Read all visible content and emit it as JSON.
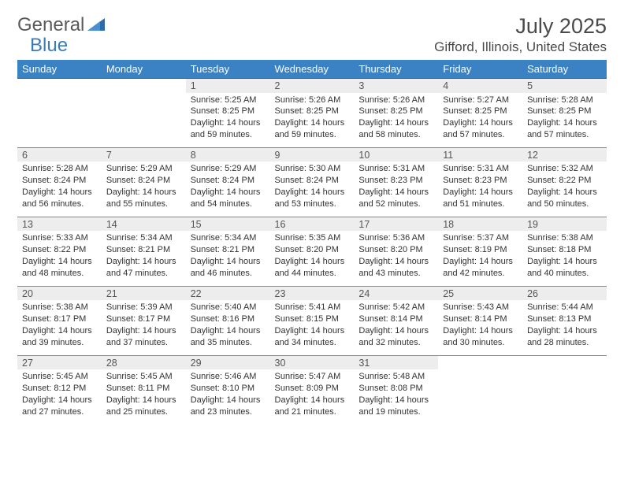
{
  "brand": {
    "prefix": "General",
    "suffix": "Blue"
  },
  "title": "July 2025",
  "location": "Gifford, Illinois, United States",
  "colors": {
    "header_bg": "#3b82c4",
    "header_text": "#ffffff",
    "daynum_bg": "#ededed",
    "border": "#888888",
    "brand_blue": "#3b7bb8",
    "text_main": "#333333",
    "text_muted": "#555555",
    "page_bg": "#ffffff"
  },
  "daynames": [
    "Sunday",
    "Monday",
    "Tuesday",
    "Wednesday",
    "Thursday",
    "Friday",
    "Saturday"
  ],
  "weeks": [
    {
      "nums": [
        "",
        "",
        "1",
        "2",
        "3",
        "4",
        "5"
      ],
      "cells": [
        null,
        null,
        {
          "sr": "5:25 AM",
          "ss": "8:25 PM",
          "dl": "14 hours and 59 minutes."
        },
        {
          "sr": "5:26 AM",
          "ss": "8:25 PM",
          "dl": "14 hours and 59 minutes."
        },
        {
          "sr": "5:26 AM",
          "ss": "8:25 PM",
          "dl": "14 hours and 58 minutes."
        },
        {
          "sr": "5:27 AM",
          "ss": "8:25 PM",
          "dl": "14 hours and 57 minutes."
        },
        {
          "sr": "5:28 AM",
          "ss": "8:25 PM",
          "dl": "14 hours and 57 minutes."
        }
      ]
    },
    {
      "nums": [
        "6",
        "7",
        "8",
        "9",
        "10",
        "11",
        "12"
      ],
      "cells": [
        {
          "sr": "5:28 AM",
          "ss": "8:24 PM",
          "dl": "14 hours and 56 minutes."
        },
        {
          "sr": "5:29 AM",
          "ss": "8:24 PM",
          "dl": "14 hours and 55 minutes."
        },
        {
          "sr": "5:29 AM",
          "ss": "8:24 PM",
          "dl": "14 hours and 54 minutes."
        },
        {
          "sr": "5:30 AM",
          "ss": "8:24 PM",
          "dl": "14 hours and 53 minutes."
        },
        {
          "sr": "5:31 AM",
          "ss": "8:23 PM",
          "dl": "14 hours and 52 minutes."
        },
        {
          "sr": "5:31 AM",
          "ss": "8:23 PM",
          "dl": "14 hours and 51 minutes."
        },
        {
          "sr": "5:32 AM",
          "ss": "8:22 PM",
          "dl": "14 hours and 50 minutes."
        }
      ]
    },
    {
      "nums": [
        "13",
        "14",
        "15",
        "16",
        "17",
        "18",
        "19"
      ],
      "cells": [
        {
          "sr": "5:33 AM",
          "ss": "8:22 PM",
          "dl": "14 hours and 48 minutes."
        },
        {
          "sr": "5:34 AM",
          "ss": "8:21 PM",
          "dl": "14 hours and 47 minutes."
        },
        {
          "sr": "5:34 AM",
          "ss": "8:21 PM",
          "dl": "14 hours and 46 minutes."
        },
        {
          "sr": "5:35 AM",
          "ss": "8:20 PM",
          "dl": "14 hours and 44 minutes."
        },
        {
          "sr": "5:36 AM",
          "ss": "8:20 PM",
          "dl": "14 hours and 43 minutes."
        },
        {
          "sr": "5:37 AM",
          "ss": "8:19 PM",
          "dl": "14 hours and 42 minutes."
        },
        {
          "sr": "5:38 AM",
          "ss": "8:18 PM",
          "dl": "14 hours and 40 minutes."
        }
      ]
    },
    {
      "nums": [
        "20",
        "21",
        "22",
        "23",
        "24",
        "25",
        "26"
      ],
      "cells": [
        {
          "sr": "5:38 AM",
          "ss": "8:17 PM",
          "dl": "14 hours and 39 minutes."
        },
        {
          "sr": "5:39 AM",
          "ss": "8:17 PM",
          "dl": "14 hours and 37 minutes."
        },
        {
          "sr": "5:40 AM",
          "ss": "8:16 PM",
          "dl": "14 hours and 35 minutes."
        },
        {
          "sr": "5:41 AM",
          "ss": "8:15 PM",
          "dl": "14 hours and 34 minutes."
        },
        {
          "sr": "5:42 AM",
          "ss": "8:14 PM",
          "dl": "14 hours and 32 minutes."
        },
        {
          "sr": "5:43 AM",
          "ss": "8:14 PM",
          "dl": "14 hours and 30 minutes."
        },
        {
          "sr": "5:44 AM",
          "ss": "8:13 PM",
          "dl": "14 hours and 28 minutes."
        }
      ]
    },
    {
      "nums": [
        "27",
        "28",
        "29",
        "30",
        "31",
        "",
        ""
      ],
      "cells": [
        {
          "sr": "5:45 AM",
          "ss": "8:12 PM",
          "dl": "14 hours and 27 minutes."
        },
        {
          "sr": "5:45 AM",
          "ss": "8:11 PM",
          "dl": "14 hours and 25 minutes."
        },
        {
          "sr": "5:46 AM",
          "ss": "8:10 PM",
          "dl": "14 hours and 23 minutes."
        },
        {
          "sr": "5:47 AM",
          "ss": "8:09 PM",
          "dl": "14 hours and 21 minutes."
        },
        {
          "sr": "5:48 AM",
          "ss": "8:08 PM",
          "dl": "14 hours and 19 minutes."
        },
        null,
        null
      ]
    }
  ],
  "labels": {
    "sunrise": "Sunrise:",
    "sunset": "Sunset:",
    "daylight": "Daylight:"
  }
}
